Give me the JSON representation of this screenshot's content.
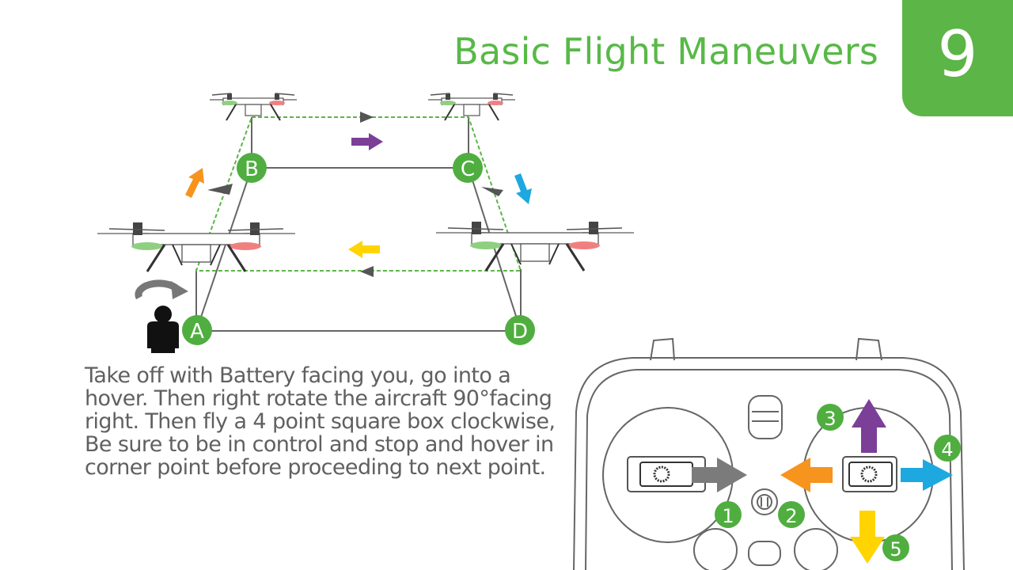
{
  "header": {
    "title": "Basic Flight Maneuvers",
    "page_number": "9"
  },
  "instructions": [
    "Take off with Battery facing you, go into a",
    "hover. Then right rotate the aircraft 90°facing",
    "right. Then fly a 4 point square box clockwise,",
    "Be sure to be in control and stop and hover in",
    "corner point before proceeding to next point."
  ],
  "flight_path": {
    "points": [
      "A",
      "B",
      "C",
      "D"
    ]
  },
  "controller": {
    "steps": [
      "1",
      "2",
      "3",
      "4",
      "5"
    ]
  },
  "colors": {
    "brand_green": "#5cb547",
    "step_circle_green": "#4fae3f",
    "arrow_gray": "#7b7b7b",
    "arrow_orange": "#f7941d",
    "arrow_purple": "#7b3f98",
    "arrow_blue": "#1ea8e0",
    "arrow_yellow": "#ffd400"
  }
}
